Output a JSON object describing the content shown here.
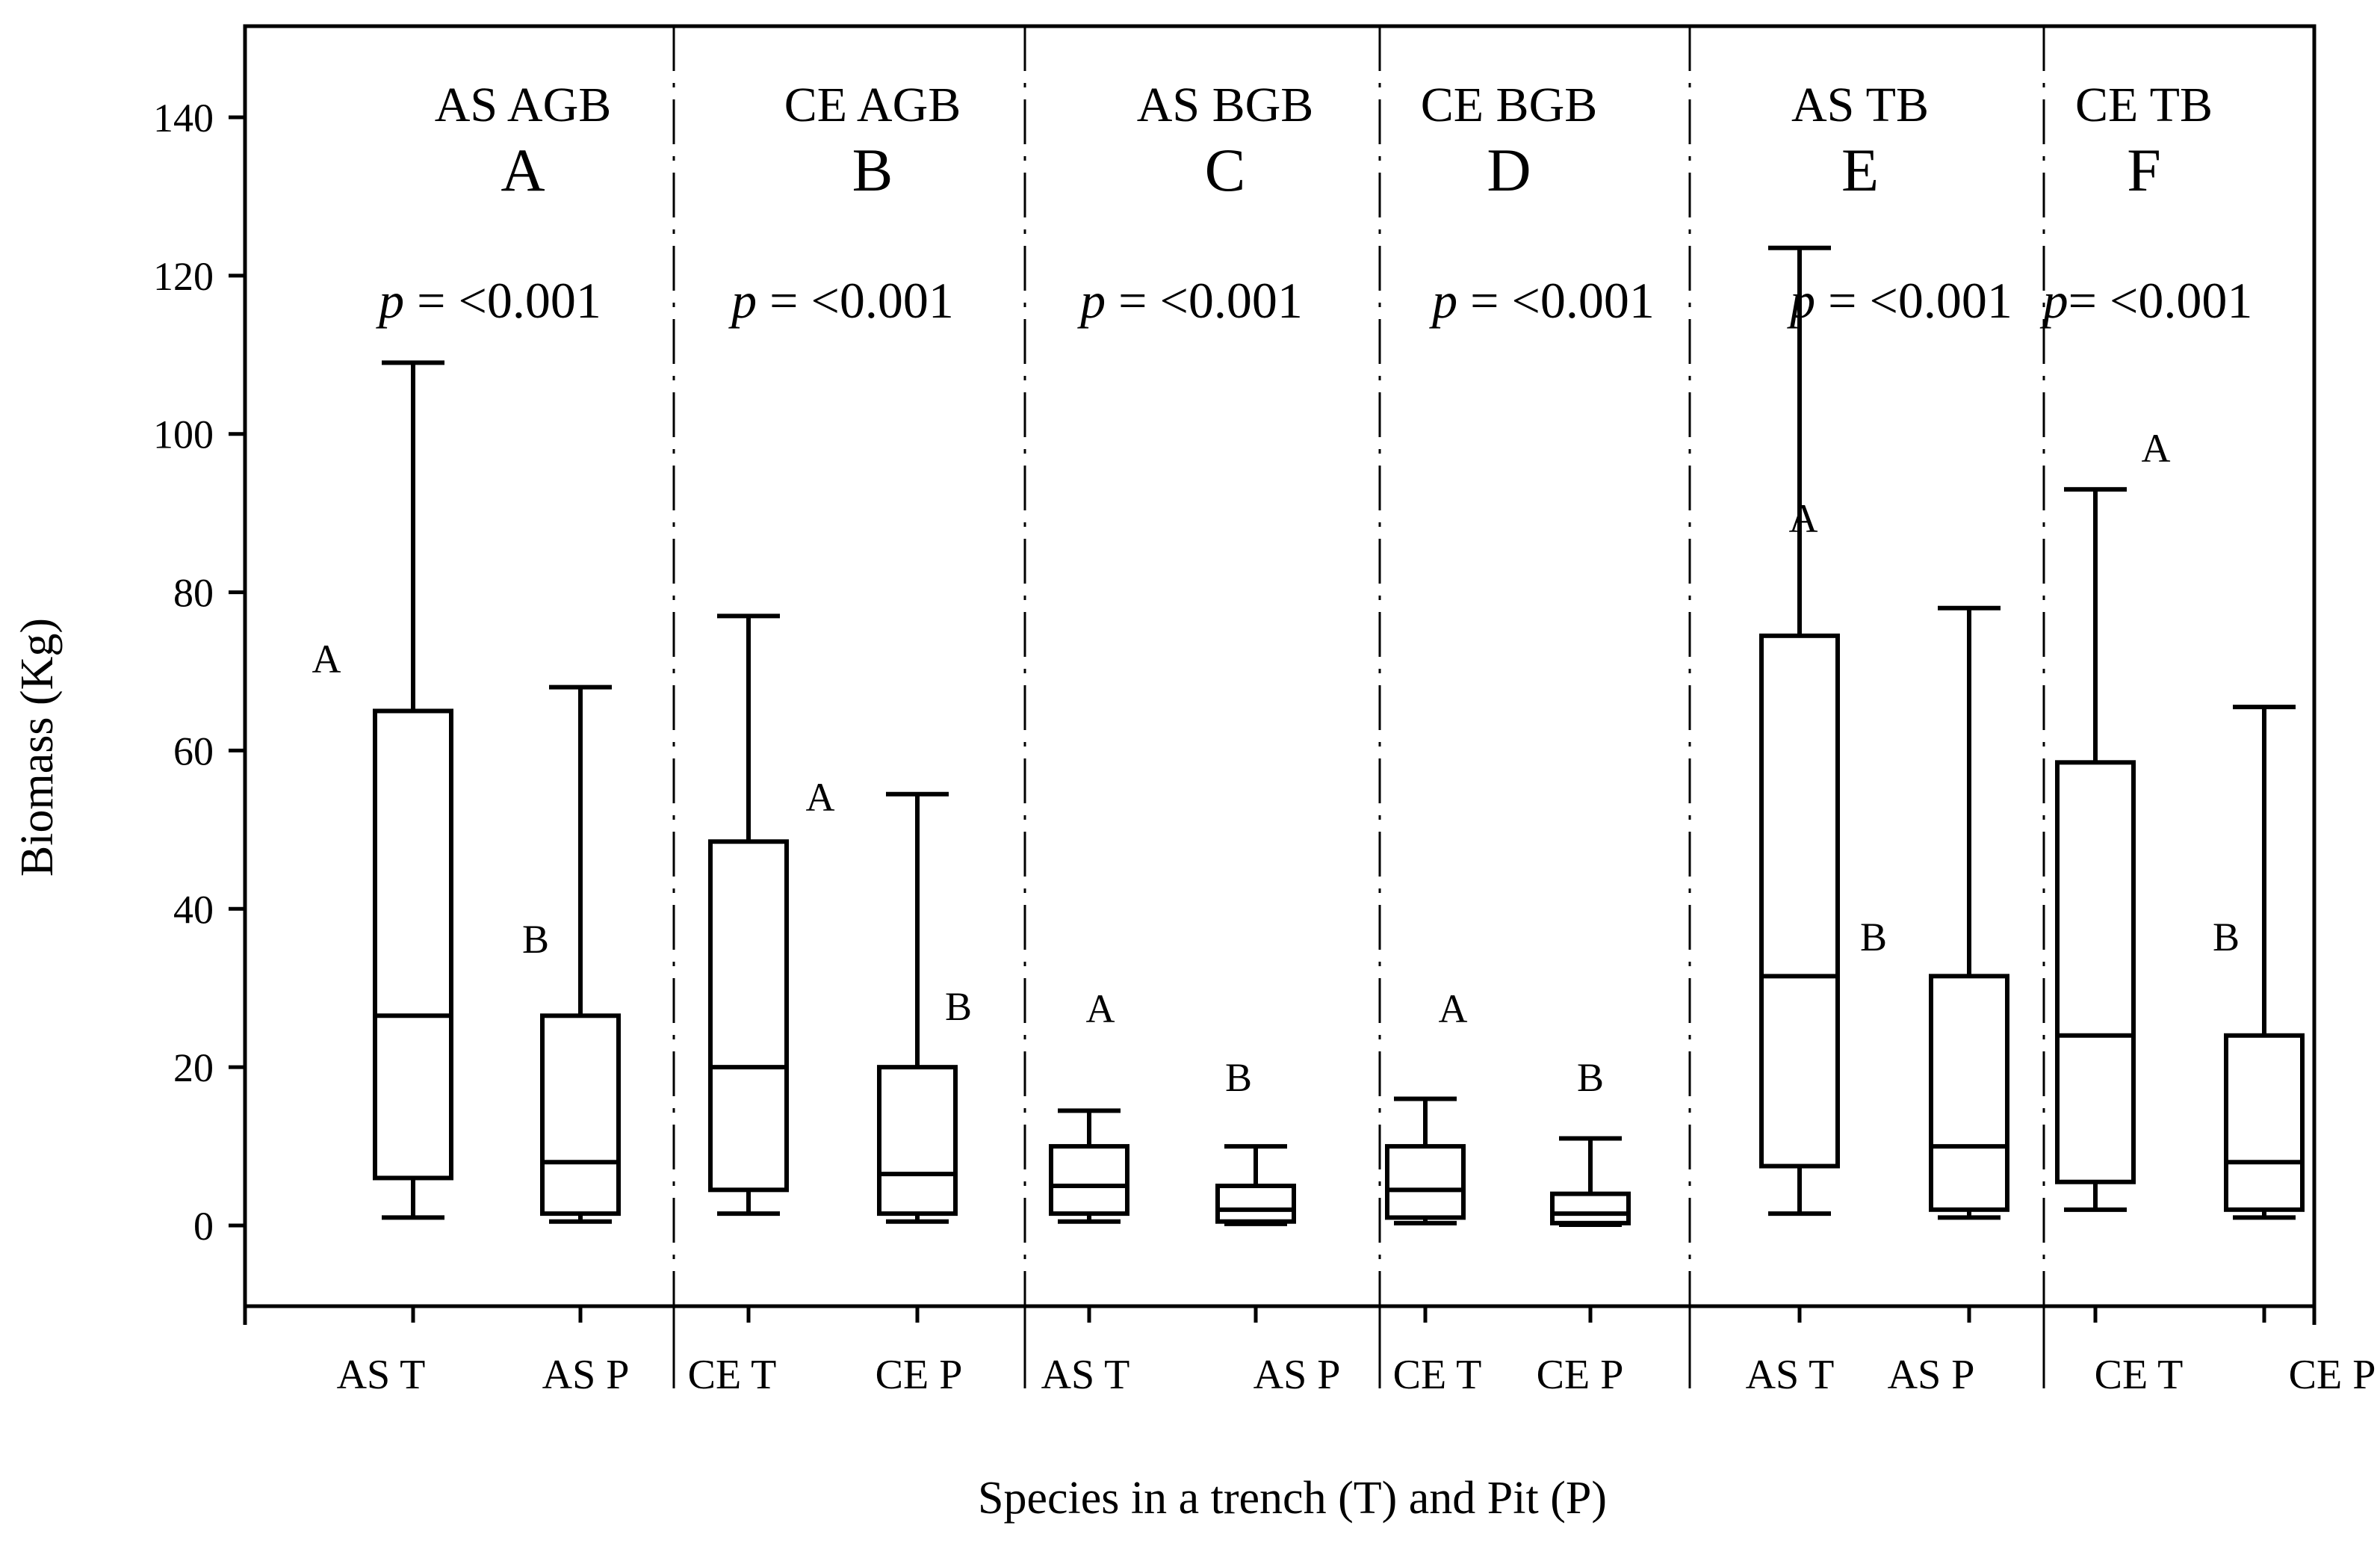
{
  "chart_data": {
    "type": "box",
    "ylabel": "Biomass (Kg)",
    "xlabel": "Species in a trench (T) and Pit (P)",
    "ylim": [
      -10,
      150
    ],
    "yticks": [
      0,
      20,
      40,
      60,
      80,
      100,
      120,
      140
    ],
    "panels": [
      {
        "label": "AS AGB",
        "letter": "A",
        "p_prefix": "p",
        "p_value": " = <0.001",
        "boxes": [
          {
            "name": "AS T",
            "min": 1,
            "q1": 6,
            "median": 26.5,
            "q3": 65,
            "max": 109,
            "group": "A"
          },
          {
            "name": "AS P",
            "min": 0.5,
            "q1": 1.5,
            "median": 8,
            "q3": 26.5,
            "max": 68,
            "group": "B"
          }
        ]
      },
      {
        "label": "CE AGB",
        "letter": "B",
        "p_prefix": "p",
        "p_value": " = <0.001",
        "boxes": [
          {
            "name": "CE T",
            "min": 1.5,
            "q1": 4.5,
            "median": 20,
            "q3": 48.5,
            "max": 77,
            "group": "A"
          },
          {
            "name": "CE P",
            "min": 0.5,
            "q1": 1.5,
            "median": 6.5,
            "q3": 20,
            "max": 54.5,
            "group": "B"
          }
        ]
      },
      {
        "label": "AS BGB",
        "letter": "C",
        "p_prefix": "p",
        "p_value": " = <0.001",
        "boxes": [
          {
            "name": "AS T",
            "min": 0.5,
            "q1": 1.5,
            "median": 5,
            "q3": 10,
            "max": 14.5,
            "group": "A"
          },
          {
            "name": "AS P",
            "min": 0.2,
            "q1": 0.5,
            "median": 2,
            "q3": 5,
            "max": 10,
            "group": "B"
          }
        ]
      },
      {
        "label": "CE BGB",
        "letter": "D",
        "p_prefix": "p",
        "p_value": " = <0.001",
        "boxes": [
          {
            "name": "CE T",
            "min": 0.3,
            "q1": 1,
            "median": 4.5,
            "q3": 10,
            "max": 16,
            "group": "A"
          },
          {
            "name": "CE P",
            "min": 0.1,
            "q1": 0.3,
            "median": 1.5,
            "q3": 4,
            "max": 11,
            "group": "B"
          }
        ]
      },
      {
        "label": "AS TB",
        "letter": "E",
        "p_prefix": "p",
        "p_value": " = <0.001",
        "boxes": [
          {
            "name": "AS T",
            "min": 1.5,
            "q1": 7.5,
            "median": 31.5,
            "q3": 74.5,
            "max": 123.5,
            "group": "A"
          },
          {
            "name": "AS P",
            "min": 1,
            "q1": 2,
            "median": 10,
            "q3": 31.5,
            "max": 78,
            "group": "B"
          }
        ]
      },
      {
        "label": "CE TB",
        "letter": "F",
        "p_prefix": "p",
        "p_value": "= <0.001",
        "boxes": [
          {
            "name": "CE T",
            "min": 2,
            "q1": 5.5,
            "median": 24,
            "q3": 58.5,
            "max": 93,
            "group": "A"
          },
          {
            "name": "CE P",
            "min": 1,
            "q1": 2,
            "median": 8,
            "q3": 24,
            "max": 65.5,
            "group": "B"
          }
        ]
      }
    ]
  }
}
